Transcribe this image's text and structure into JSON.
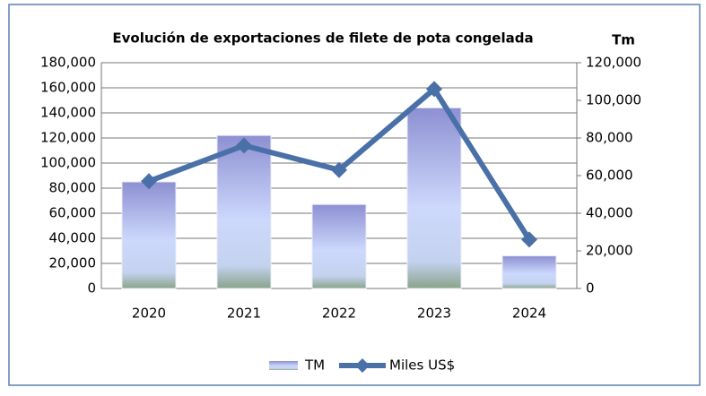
{
  "chart_data": {
    "type": "bar_line",
    "title": "Evolución de exportaciones de filete de pota congelada",
    "y2_label": "Tm",
    "categories": [
      "2020",
      "2021",
      "2022",
      "2023",
      "2024"
    ],
    "series": [
      {
        "name": "TM",
        "color": "#9a9fdc",
        "values": [
          85000,
          122000,
          67000,
          144000,
          26000
        ]
      },
      {
        "name": "Miles US$",
        "color": "#4a70a8",
        "axis": "y2",
        "values": [
          57000,
          76000,
          63000,
          106000,
          26000
        ]
      }
    ],
    "ylim": [
      0,
      180000
    ],
    "yticks": [
      0,
      {
        "value": 20000,
        "label": "20,000"
      },
      {
        "value": 40000,
        "label": "40,000"
      },
      {
        "value": 60000,
        "label": "60,000"
      },
      {
        "value": 80000,
        "label": "80,000"
      },
      {
        "value": 100000,
        "label": "100,000"
      },
      {
        "value": 120000,
        "label": "120,000"
      },
      {
        "value": 140000,
        "label": "140,000"
      },
      {
        "value": 160000,
        "label": "160,000"
      },
      {
        "value": 180000,
        "label": "180,000"
      }
    ],
    "y2lim": [
      0,
      120000
    ],
    "y2ticks": [
      0,
      {
        "value": 20000,
        "label": "20,000"
      },
      {
        "value": 40000,
        "label": "40,000"
      },
      {
        "value": 60000,
        "label": "60,000"
      },
      {
        "value": 80000,
        "label": "80,000"
      },
      {
        "value": 100000,
        "label": "100,000"
      },
      {
        "value": 120000,
        "label": "120,000"
      }
    ],
    "grid": true,
    "legend": "bottom"
  }
}
